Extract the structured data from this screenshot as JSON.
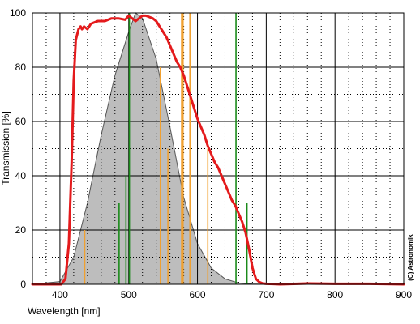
{
  "chart_data": {
    "type": "line",
    "title": "",
    "xlabel": "Wavelength [nm]",
    "ylabel": "Transmission [%]",
    "xlim": [
      360,
      900
    ],
    "ylim": [
      0,
      100
    ],
    "x_ticks": [
      400,
      500,
      600,
      700,
      800,
      900
    ],
    "y_ticks": [
      0,
      20,
      40,
      60,
      80,
      100
    ],
    "x_tick_labels": [
      "400",
      "500",
      "600",
      "700",
      "800",
      "900"
    ],
    "y_tick_labels": [
      "0",
      "20",
      "40",
      "60",
      "80",
      "100"
    ],
    "x_minor_grid_step": 20,
    "y_minor_grid_step": 10,
    "grid": true,
    "copyright": "(C) Astronomik",
    "colors": {
      "filter_curve": "#e41a1c",
      "eye_curve_fill": "#bdbdbd",
      "eye_curve_edge": "#555555",
      "orange_lines": "#f0a030",
      "green_lines": "#1a8a1a",
      "major_grid": "#000000",
      "minor_grid": "#000000"
    },
    "series": [
      {
        "role": "filter-transmission",
        "x": [
          360,
          402,
          408,
          413,
          417,
          420,
          423,
          427,
          430,
          432,
          435,
          440,
          445,
          455,
          465,
          475,
          485,
          495,
          500,
          505,
          510,
          515,
          520,
          525,
          530,
          535,
          540,
          545,
          550,
          555,
          560,
          565,
          570,
          575,
          580,
          585,
          590,
          595,
          600,
          605,
          610,
          615,
          620,
          625,
          630,
          635,
          640,
          645,
          650,
          655,
          660,
          665,
          670,
          675,
          680,
          685,
          690,
          695,
          700,
          710,
          720,
          760,
          800,
          850,
          900
        ],
        "y": [
          0,
          0,
          2,
          15,
          45,
          75,
          90,
          94,
          95,
          94,
          95,
          94,
          96,
          97,
          97,
          98,
          98,
          97.5,
          99,
          98,
          97,
          98,
          99,
          99,
          98.5,
          98,
          97,
          95,
          93,
          91,
          88,
          85,
          82,
          80,
          77,
          73,
          69,
          65,
          61,
          58,
          55,
          51,
          48,
          45,
          43,
          40,
          37,
          34,
          31,
          29,
          26,
          23,
          19,
          13,
          6,
          2,
          0.8,
          0.3,
          0.2,
          0.1,
          0,
          0.3,
          0.2,
          0.2,
          0
        ]
      },
      {
        "role": "eye-sensitivity",
        "x": [
          360,
          400,
          420,
          440,
          460,
          480,
          500,
          510,
          520,
          540,
          560,
          580,
          600,
          620,
          640,
          660,
          680,
          700,
          720,
          900
        ],
        "y": [
          0,
          1,
          10,
          30,
          55,
          77,
          93,
          100,
          98,
          83,
          58,
          32,
          15,
          6,
          2,
          0.5,
          0.1,
          0,
          0,
          0
        ]
      }
    ],
    "spectral_lines": [
      {
        "color": "orange",
        "x": 436,
        "y": 20
      },
      {
        "color": "green",
        "x": 486,
        "y": 30
      },
      {
        "color": "green",
        "x": 496,
        "y": 40
      },
      {
        "color": "green",
        "x": 501,
        "y": 100
      },
      {
        "color": "orange",
        "x": 546,
        "y": 80
      },
      {
        "color": "orange",
        "x": 557,
        "y": 50
      },
      {
        "color": "orange",
        "x": 577,
        "y": 100
      },
      {
        "color": "orange",
        "x": 579,
        "y": 100
      },
      {
        "color": "orange",
        "x": 589,
        "y": 100
      },
      {
        "color": "orange",
        "x": 615,
        "y": 50
      },
      {
        "color": "green",
        "x": 656,
        "y": 100
      },
      {
        "color": "green",
        "x": 672,
        "y": 30
      }
    ]
  }
}
